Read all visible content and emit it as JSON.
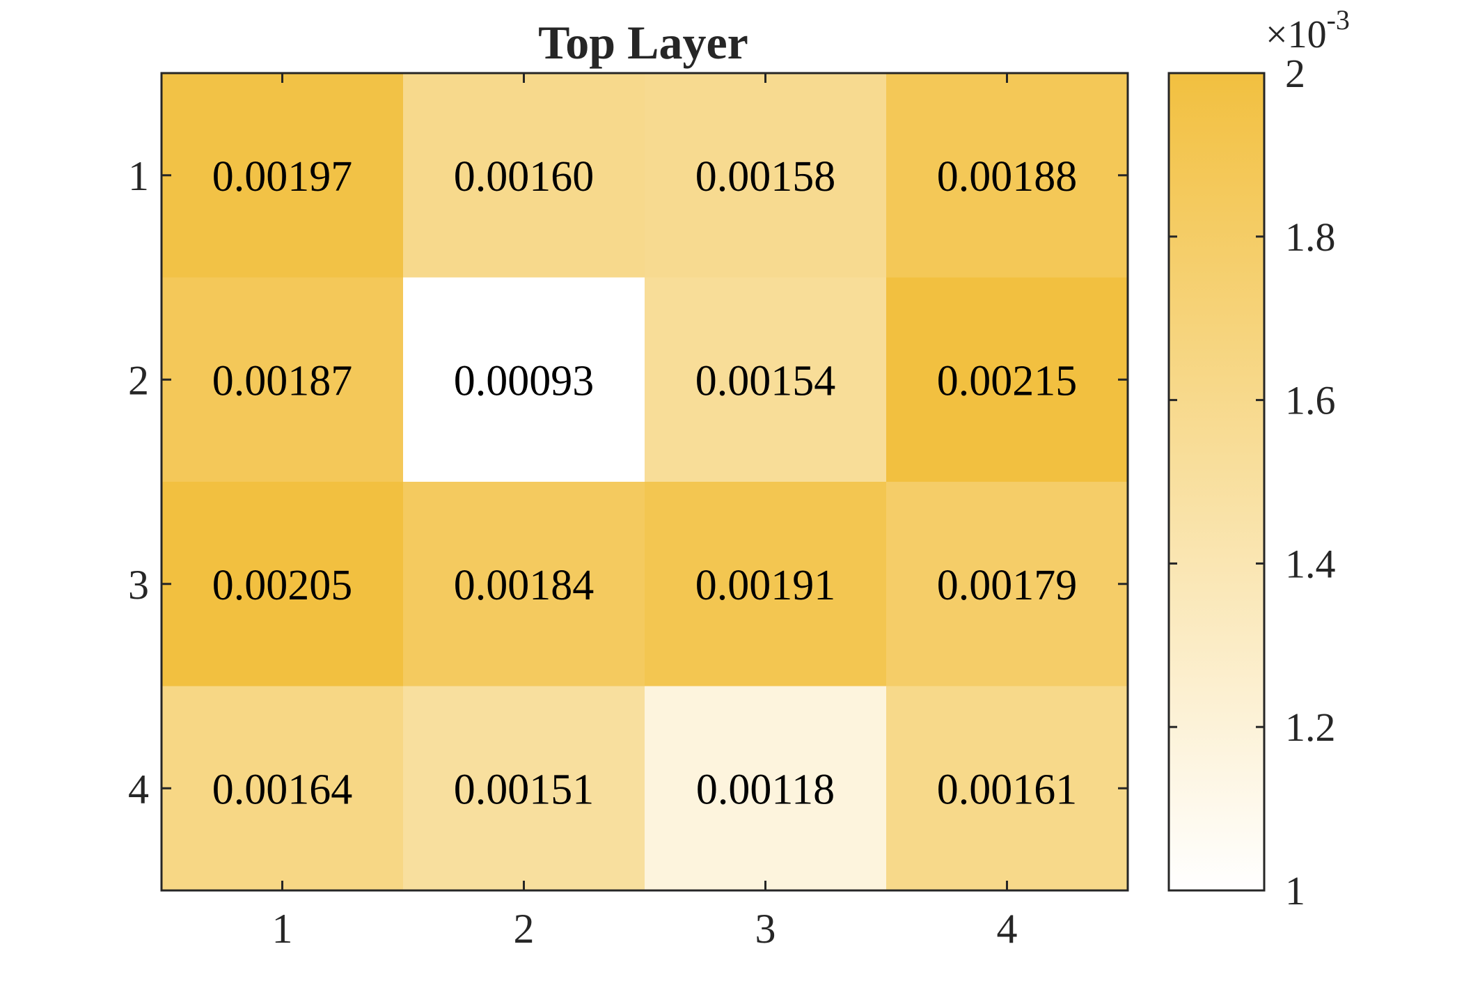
{
  "chart_data": {
    "type": "heatmap",
    "title": "Top Layer",
    "xlabel": "",
    "ylabel": "",
    "x_categories": [
      "1",
      "2",
      "3",
      "4"
    ],
    "y_categories": [
      "1",
      "2",
      "3",
      "4"
    ],
    "values": [
      [
        0.00197,
        0.0016,
        0.00158,
        0.00188
      ],
      [
        0.00187,
        0.00093,
        0.00154,
        0.00215
      ],
      [
        0.00205,
        0.00184,
        0.00191,
        0.00179
      ],
      [
        0.00164,
        0.00151,
        0.00118,
        0.00161
      ]
    ],
    "cell_labels": [
      [
        "0.00197",
        "0.00160",
        "0.00158",
        "0.00188"
      ],
      [
        "0.00187",
        "0.00093",
        "0.00154",
        "0.00215"
      ],
      [
        "0.00205",
        "0.00184",
        "0.00191",
        "0.00179"
      ],
      [
        "0.00164",
        "0.00151",
        "0.00118",
        "0.00161"
      ]
    ],
    "colorbar": {
      "range": [
        0.001,
        0.002
      ],
      "ticks": [
        1,
        1.2,
        1.4,
        1.6,
        1.8,
        2
      ],
      "tick_labels": [
        "1",
        "1.2",
        "1.4",
        "1.6",
        "1.8",
        "2"
      ],
      "multiplier": "×10",
      "exponent": "-3"
    },
    "colors": {
      "low": "#ffffff",
      "high": "#f2c040",
      "text": "#000000",
      "axis": "#262626"
    }
  }
}
